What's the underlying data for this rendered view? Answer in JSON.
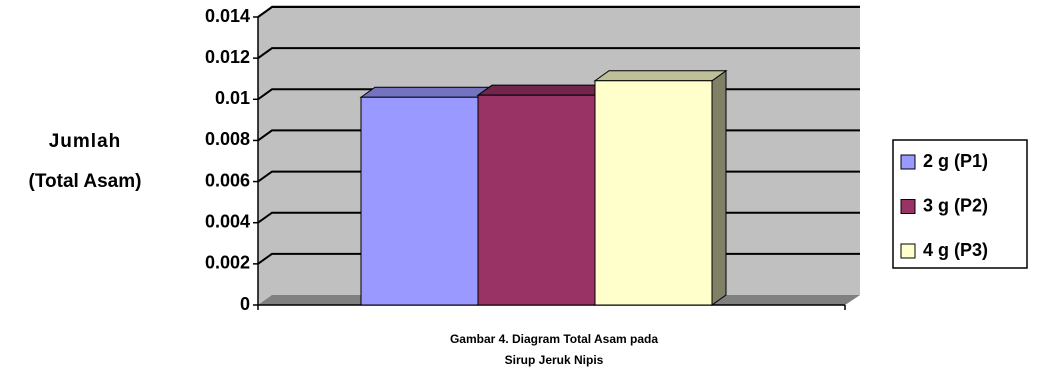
{
  "chart_data": {
    "type": "bar3d",
    "title": [
      "Gambar 4. Diagram Total Asam pada",
      "Sirup Jeruk Nipis"
    ],
    "y_label": [
      "Jumlah",
      "(Total Asam)"
    ],
    "categories": [
      null
    ],
    "series": [
      {
        "name": "2 g (P1)",
        "color": "#9999ff",
        "values": [
          0.0101
        ]
      },
      {
        "name": "3 g (P2)",
        "color": "#993366",
        "values": [
          0.0102
        ]
      },
      {
        "name": "4 g (P3)",
        "color": "#ffffcc",
        "values": [
          0.0109
        ]
      }
    ],
    "ylim": [
      0,
      0.014
    ],
    "yticks": [
      0,
      0.002,
      0.004,
      0.006,
      0.008,
      0.01,
      0.012,
      0.014
    ],
    "grid": true,
    "legend": "right"
  }
}
